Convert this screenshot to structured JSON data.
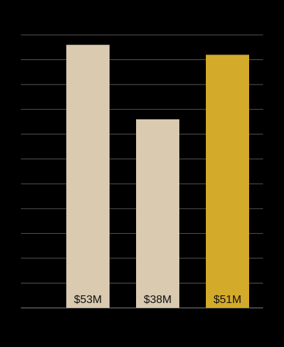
{
  "chart_data": {
    "type": "bar",
    "categories": [
      null,
      null,
      null
    ],
    "values": [
      53,
      38,
      51
    ],
    "value_labels": [
      "$53M",
      "$38M",
      "$51M"
    ],
    "colors": [
      "#d9cab0",
      "#d9cab0",
      "#d4aa2b"
    ],
    "ylim": [
      0,
      55
    ],
    "yticks": [
      0,
      5,
      10,
      15,
      20,
      25,
      30,
      35,
      40,
      45,
      50,
      55
    ],
    "grid": true
  }
}
